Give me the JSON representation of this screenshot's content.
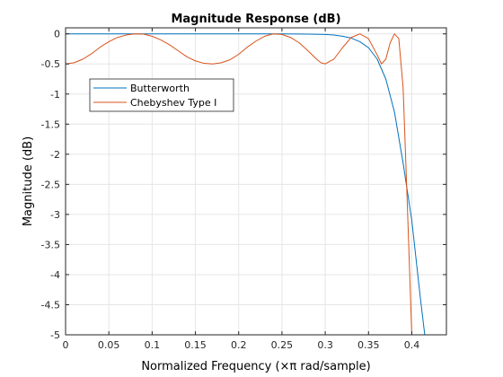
{
  "chart_data": {
    "type": "line",
    "title": "Magnitude Response (dB)",
    "xlabel": "Normalized Frequency (×π rad/sample)",
    "ylabel": "Magnitude (dB)",
    "xlim": [
      0,
      0.44
    ],
    "ylim": [
      -5,
      0.1
    ],
    "grid": true,
    "legend_position": "top-left",
    "x_ticks": [
      0,
      0.05,
      0.1,
      0.15,
      0.2,
      0.25,
      0.3,
      0.35,
      0.4
    ],
    "x_tick_labels": [
      "0",
      "0.05",
      "0.1",
      "0.15",
      "0.2",
      "0.25",
      "0.3",
      "0.35",
      "0.4"
    ],
    "y_ticks": [
      0,
      -0.5,
      -1,
      -1.5,
      -2,
      -2.5,
      -3,
      -3.5,
      -4,
      -4.5,
      -5
    ],
    "y_tick_labels": [
      "0",
      "-0.5",
      "-1",
      "-1.5",
      "-2",
      "-2.5",
      "-3",
      "-3.5",
      "-4",
      "-4.5",
      "-5"
    ],
    "series": [
      {
        "name": "Butterworth",
        "color": "#0072BD",
        "x": [
          0,
          0.05,
          0.1,
          0.15,
          0.2,
          0.25,
          0.28,
          0.3,
          0.31,
          0.32,
          0.33,
          0.34,
          0.35,
          0.36,
          0.37,
          0.38,
          0.39,
          0.4,
          0.41,
          0.415
        ],
        "y": [
          0,
          0,
          0,
          0,
          0,
          0,
          -0.005,
          -0.01,
          -0.02,
          -0.04,
          -0.07,
          -0.13,
          -0.23,
          -0.42,
          -0.75,
          -1.3,
          -2.15,
          -3.1,
          -4.4,
          -5
        ]
      },
      {
        "name": "Chebyshev Type I",
        "color": "#D95319",
        "x": [
          0,
          0.01,
          0.02,
          0.03,
          0.04,
          0.05,
          0.06,
          0.07,
          0.08,
          0.09,
          0.1,
          0.11,
          0.12,
          0.13,
          0.14,
          0.15,
          0.16,
          0.17,
          0.18,
          0.19,
          0.2,
          0.21,
          0.22,
          0.23,
          0.24,
          0.25,
          0.26,
          0.27,
          0.28,
          0.29,
          0.295,
          0.3,
          0.31,
          0.32,
          0.33,
          0.34,
          0.35,
          0.36,
          0.365,
          0.37,
          0.375,
          0.38,
          0.385,
          0.39,
          0.395,
          0.4
        ],
        "y": [
          -0.5,
          -0.48,
          -0.42,
          -0.33,
          -0.22,
          -0.13,
          -0.06,
          -0.02,
          0,
          -0.005,
          -0.04,
          -0.1,
          -0.18,
          -0.28,
          -0.38,
          -0.45,
          -0.49,
          -0.5,
          -0.48,
          -0.43,
          -0.34,
          -0.22,
          -0.12,
          -0.04,
          0,
          -0.01,
          -0.06,
          -0.15,
          -0.28,
          -0.42,
          -0.48,
          -0.5,
          -0.42,
          -0.23,
          -0.06,
          0,
          -0.08,
          -0.35,
          -0.5,
          -0.42,
          -0.15,
          0,
          -0.08,
          -0.9,
          -2.9,
          -5
        ]
      }
    ]
  }
}
